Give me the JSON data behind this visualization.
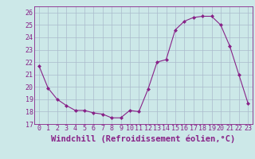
{
  "x": [
    0,
    1,
    2,
    3,
    4,
    5,
    6,
    7,
    8,
    9,
    10,
    11,
    12,
    13,
    14,
    15,
    16,
    17,
    18,
    19,
    20,
    21,
    22,
    23
  ],
  "y": [
    21.7,
    19.9,
    19.0,
    18.5,
    18.1,
    18.1,
    17.9,
    17.8,
    17.5,
    17.5,
    18.1,
    18.0,
    19.8,
    22.0,
    22.2,
    24.6,
    25.3,
    25.6,
    25.7,
    25.7,
    25.0,
    23.3,
    21.0,
    18.7
  ],
  "xlim": [
    -0.5,
    23.5
  ],
  "ylim": [
    17,
    26.5
  ],
  "yticks": [
    17,
    18,
    19,
    20,
    21,
    22,
    23,
    24,
    25,
    26
  ],
  "xticks": [
    0,
    1,
    2,
    3,
    4,
    5,
    6,
    7,
    8,
    9,
    10,
    11,
    12,
    13,
    14,
    15,
    16,
    17,
    18,
    19,
    20,
    21,
    22,
    23
  ],
  "xlabel": "Windchill (Refroidissement éolien,°C)",
  "line_color": "#882288",
  "marker": "D",
  "marker_size": 2.0,
  "bg_color": "#cce8e8",
  "grid_color": "#aabbcc",
  "label_fontsize": 7.5,
  "tick_fontsize": 6.0
}
